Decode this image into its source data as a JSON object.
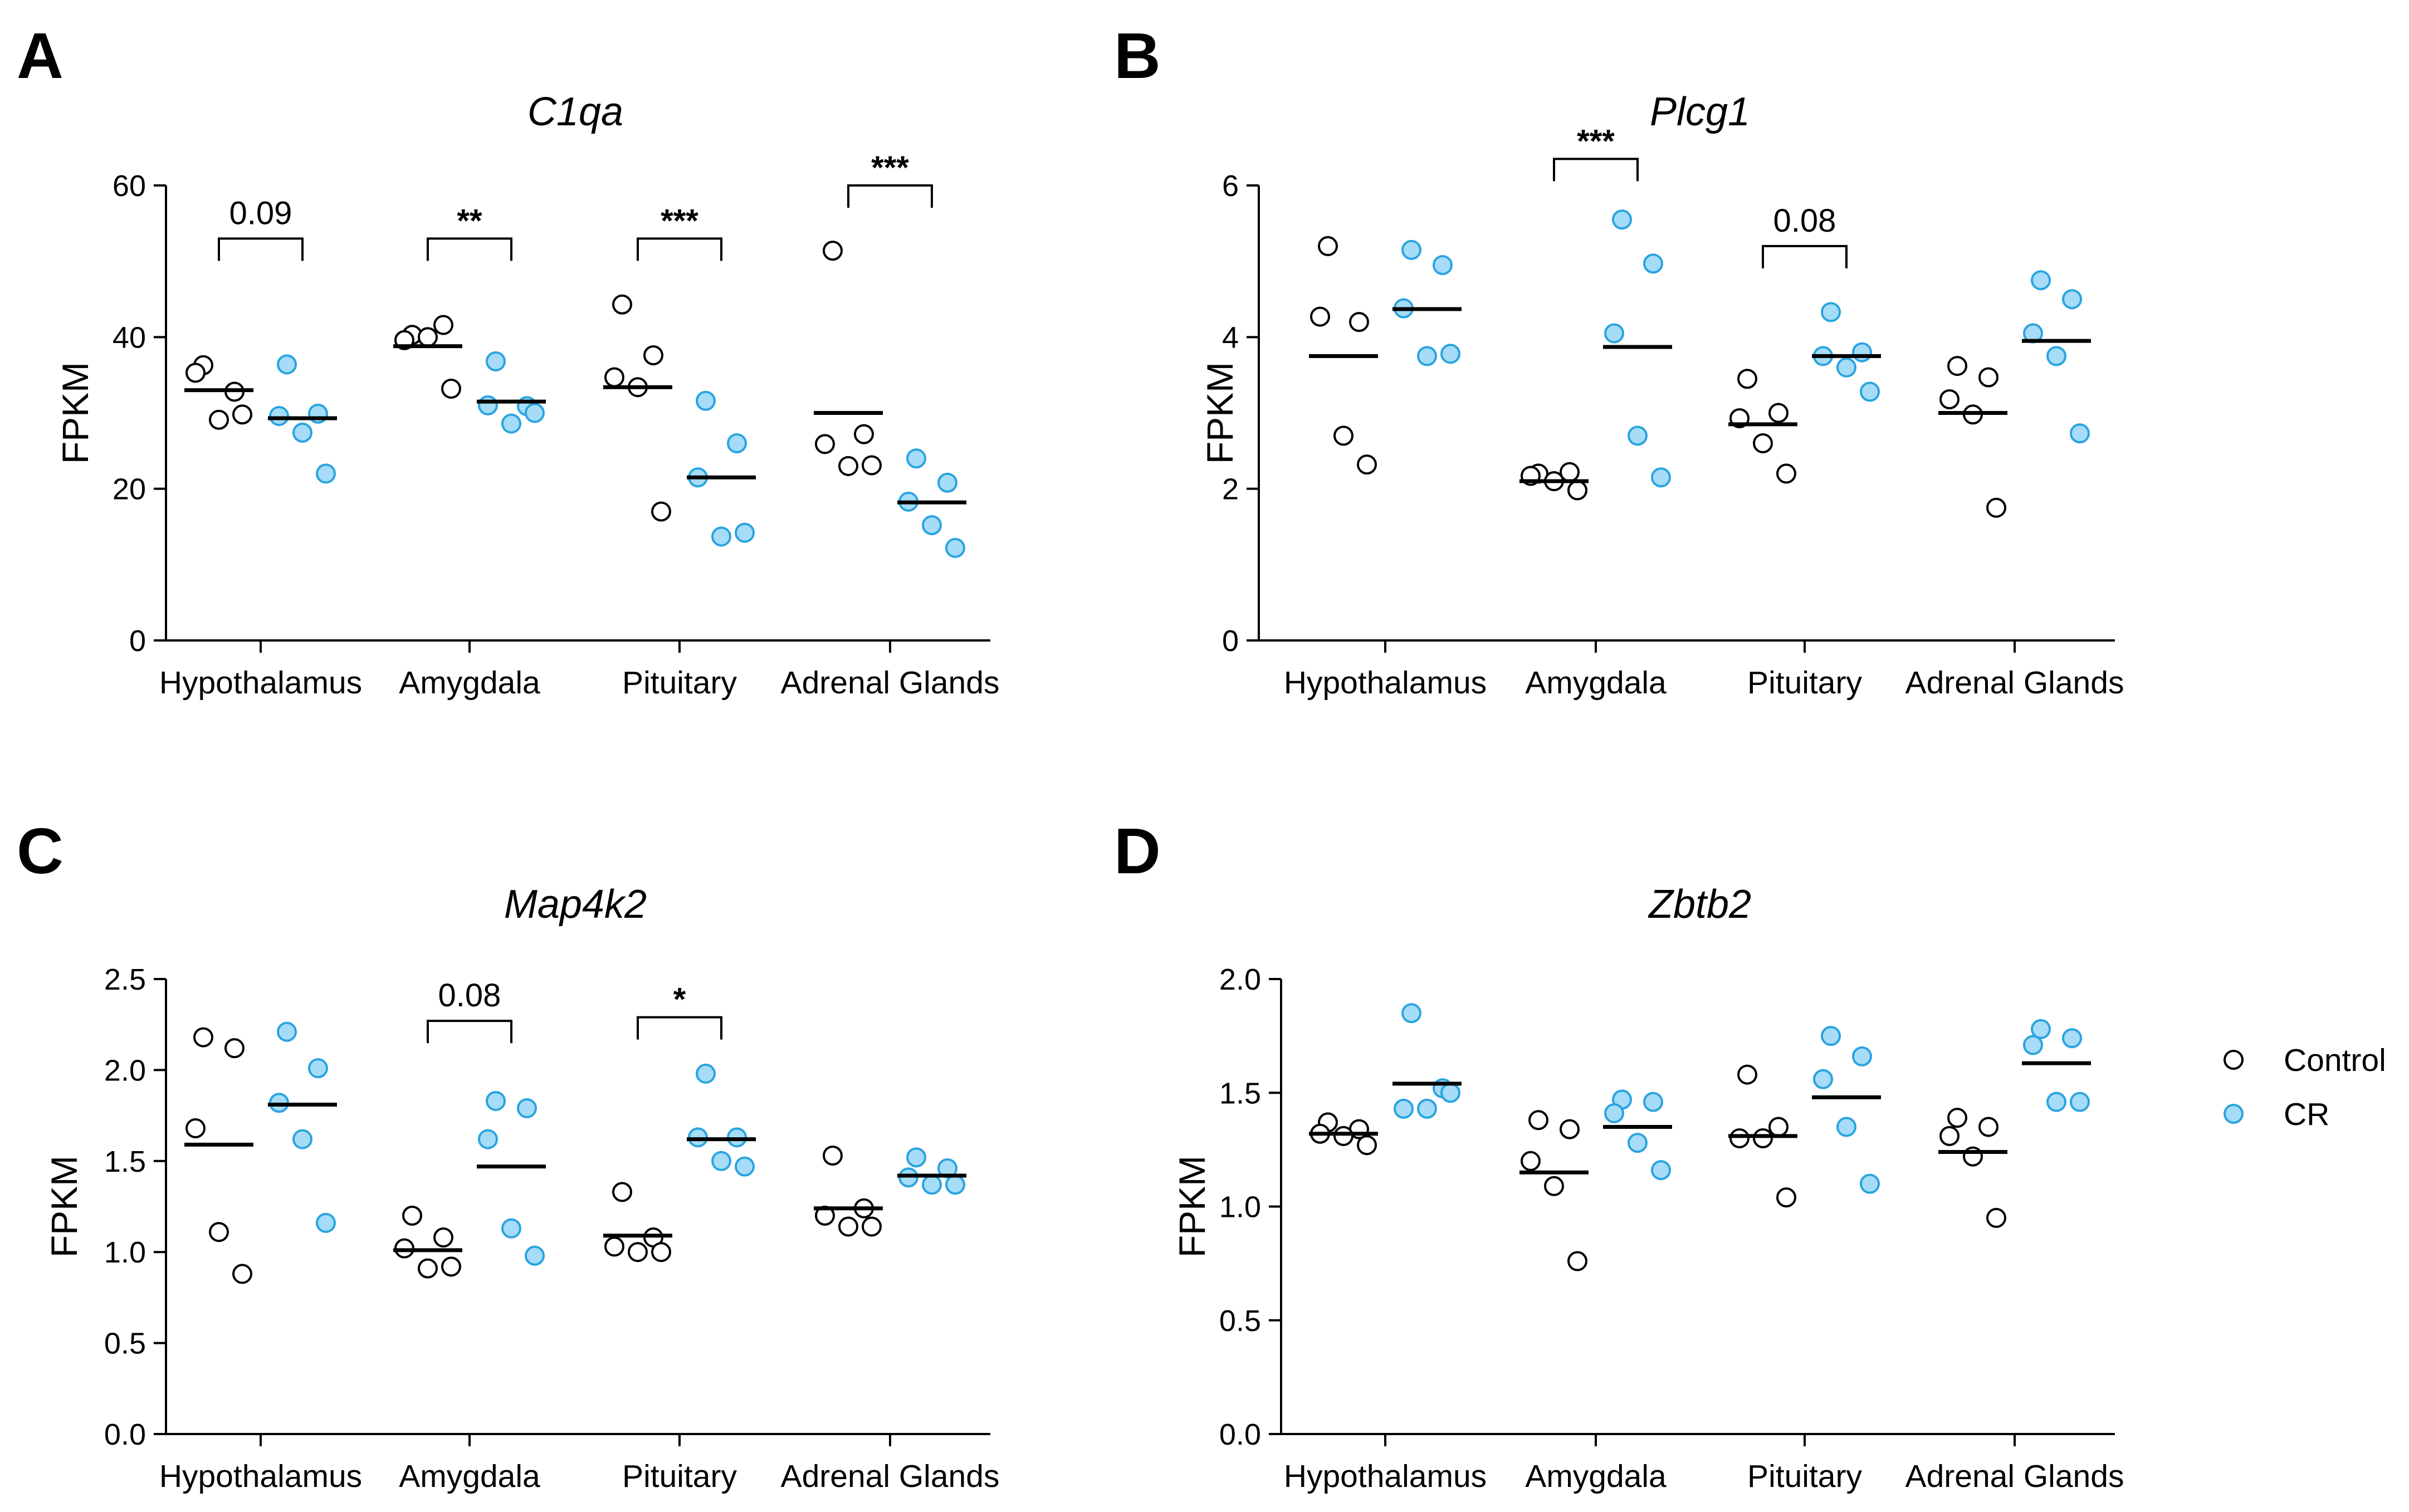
{
  "colors": {
    "control_fill": "#ffffff",
    "control_edge": "#000000",
    "cr_fill": "#a6dcf7",
    "cr_edge": "#2aa4e0",
    "axis": "#000000"
  },
  "legend": {
    "items": [
      {
        "name": "Control",
        "marker": "open-circle"
      },
      {
        "name": "CR",
        "marker": "blue-circle"
      }
    ]
  },
  "chart_data": [
    {
      "panel": "A",
      "type": "scatter",
      "title": "C1qa",
      "ylabel": "FPKM",
      "xlabel": "",
      "ylim": [
        0,
        60
      ],
      "yticks": [
        "0",
        "20",
        "40",
        "60"
      ],
      "categories": [
        "Hypothalamus",
        "Amygdala",
        "Pituitary",
        "Adrenal Glands"
      ],
      "series": [
        {
          "name": "Control",
          "means": [
            33.0,
            38.8,
            33.4,
            30.0
          ],
          "points": [
            [
              36.3,
              32.8,
              35.3,
              29.1,
              29.8
            ],
            [
              40.3,
              41.6,
              39.6,
              40.0,
              33.2
            ],
            [
              44.3,
              37.6,
              34.7,
              33.4,
              17.0
            ],
            [
              51.4,
              27.2,
              25.9,
              23.0,
              23.1
            ]
          ]
        },
        {
          "name": "CR",
          "means": [
            29.3,
            31.5,
            21.5,
            18.2
          ],
          "points": [
            [
              36.4,
              29.9,
              29.6,
              27.4,
              22.0
            ],
            [
              36.8,
              30.9,
              31.0,
              28.6,
              30.0
            ],
            [
              31.6,
              26.0,
              21.5,
              13.7,
              14.2
            ],
            [
              24.0,
              20.8,
              18.3,
              15.2,
              12.2
            ]
          ]
        }
      ],
      "annotations": [
        {
          "category": "Hypothalamus",
          "label": "0.09",
          "y": 53
        },
        {
          "category": "Amygdala",
          "label": "**",
          "y": 53
        },
        {
          "category": "Pituitary",
          "label": "***",
          "y": 53
        },
        {
          "category": "Adrenal Glands",
          "label": "***",
          "y": 60
        }
      ]
    },
    {
      "panel": "B",
      "type": "scatter",
      "title": "Plcg1",
      "ylabel": "FPKM",
      "xlabel": "",
      "ylim": [
        0,
        6
      ],
      "yticks": [
        "0",
        "2",
        "4",
        "6"
      ],
      "categories": [
        "Hypothalamus",
        "Amygdala",
        "Pituitary",
        "Adrenal Glands"
      ],
      "series": [
        {
          "name": "Control",
          "means": [
            3.75,
            2.1,
            2.85,
            3.0
          ],
          "points": [
            [
              5.2,
              4.2,
              4.27,
              2.7,
              2.32
            ],
            [
              2.2,
              2.22,
              2.17,
              2.1,
              1.98
            ],
            [
              3.45,
              3.0,
              2.93,
              2.6,
              2.2
            ],
            [
              3.62,
              3.47,
              3.18,
              2.98,
              1.75
            ]
          ]
        },
        {
          "name": "CR",
          "means": [
            4.37,
            3.87,
            3.75,
            3.95
          ],
          "points": [
            [
              5.15,
              4.95,
              4.38,
              3.75,
              3.78
            ],
            [
              5.55,
              4.97,
              4.05,
              2.7,
              2.15
            ],
            [
              4.33,
              3.8,
              3.75,
              3.6,
              3.28
            ],
            [
              4.75,
              4.5,
              4.05,
              3.75,
              2.73
            ]
          ]
        }
      ],
      "annotations": [
        {
          "category": "Amygdala",
          "label": "***",
          "y": 6.35
        },
        {
          "category": "Pituitary",
          "label": "0.08",
          "y": 5.2
        }
      ]
    },
    {
      "panel": "C",
      "type": "scatter",
      "title": "Map4k2",
      "ylabel": "FPKM",
      "xlabel": "",
      "ylim": [
        0,
        2.5
      ],
      "yticks": [
        "0.0",
        "0.5",
        "1.0",
        "1.5",
        "2.0",
        "2.5"
      ],
      "categories": [
        "Hypothalamus",
        "Amygdala",
        "Pituitary",
        "Adrenal Glands"
      ],
      "series": [
        {
          "name": "Control",
          "means": [
            1.59,
            1.01,
            1.09,
            1.24
          ],
          "points": [
            [
              2.18,
              2.12,
              1.68,
              1.11,
              0.88
            ],
            [
              1.2,
              1.08,
              1.02,
              0.91,
              0.92
            ],
            [
              1.33,
              1.08,
              1.03,
              1.0,
              1.0
            ],
            [
              1.53,
              1.24,
              1.2,
              1.14,
              1.14
            ]
          ]
        },
        {
          "name": "CR",
          "means": [
            1.81,
            1.47,
            1.62,
            1.42
          ],
          "points": [
            [
              2.21,
              2.01,
              1.82,
              1.62,
              1.16
            ],
            [
              1.83,
              1.79,
              1.62,
              1.13,
              0.98
            ],
            [
              1.98,
              1.63,
              1.63,
              1.5,
              1.47
            ],
            [
              1.52,
              1.46,
              1.41,
              1.37,
              1.37
            ]
          ]
        }
      ],
      "annotations": [
        {
          "category": "Amygdala",
          "label": "0.08",
          "y": 2.27
        },
        {
          "category": "Pituitary",
          "label": "*",
          "y": 2.29
        }
      ]
    },
    {
      "panel": "D",
      "type": "scatter",
      "title": "Zbtb2",
      "ylabel": "FPKM",
      "xlabel": "",
      "ylim": [
        0,
        2
      ],
      "yticks": [
        "0.0",
        "0.5",
        "1.0",
        "1.5",
        "2.0"
      ],
      "categories": [
        "Hypothalamus",
        "Amygdala",
        "Pituitary",
        "Adrenal Glands"
      ],
      "series": [
        {
          "name": "Control",
          "means": [
            1.32,
            1.15,
            1.31,
            1.24
          ],
          "points": [
            [
              1.37,
              1.34,
              1.32,
              1.31,
              1.27
            ],
            [
              1.38,
              1.34,
              1.2,
              1.09,
              0.76
            ],
            [
              1.58,
              1.35,
              1.3,
              1.3,
              1.04
            ],
            [
              1.39,
              1.35,
              1.31,
              1.22,
              0.95
            ]
          ]
        },
        {
          "name": "CR",
          "means": [
            1.54,
            1.35,
            1.48,
            1.63
          ],
          "points": [
            [
              1.85,
              1.52,
              1.43,
              1.43,
              1.5
            ],
            [
              1.47,
              1.46,
              1.41,
              1.28,
              1.16
            ],
            [
              1.75,
              1.66,
              1.56,
              1.35,
              1.1
            ],
            [
              1.78,
              1.74,
              1.71,
              1.46,
              1.46
            ]
          ]
        }
      ],
      "annotations": []
    }
  ]
}
